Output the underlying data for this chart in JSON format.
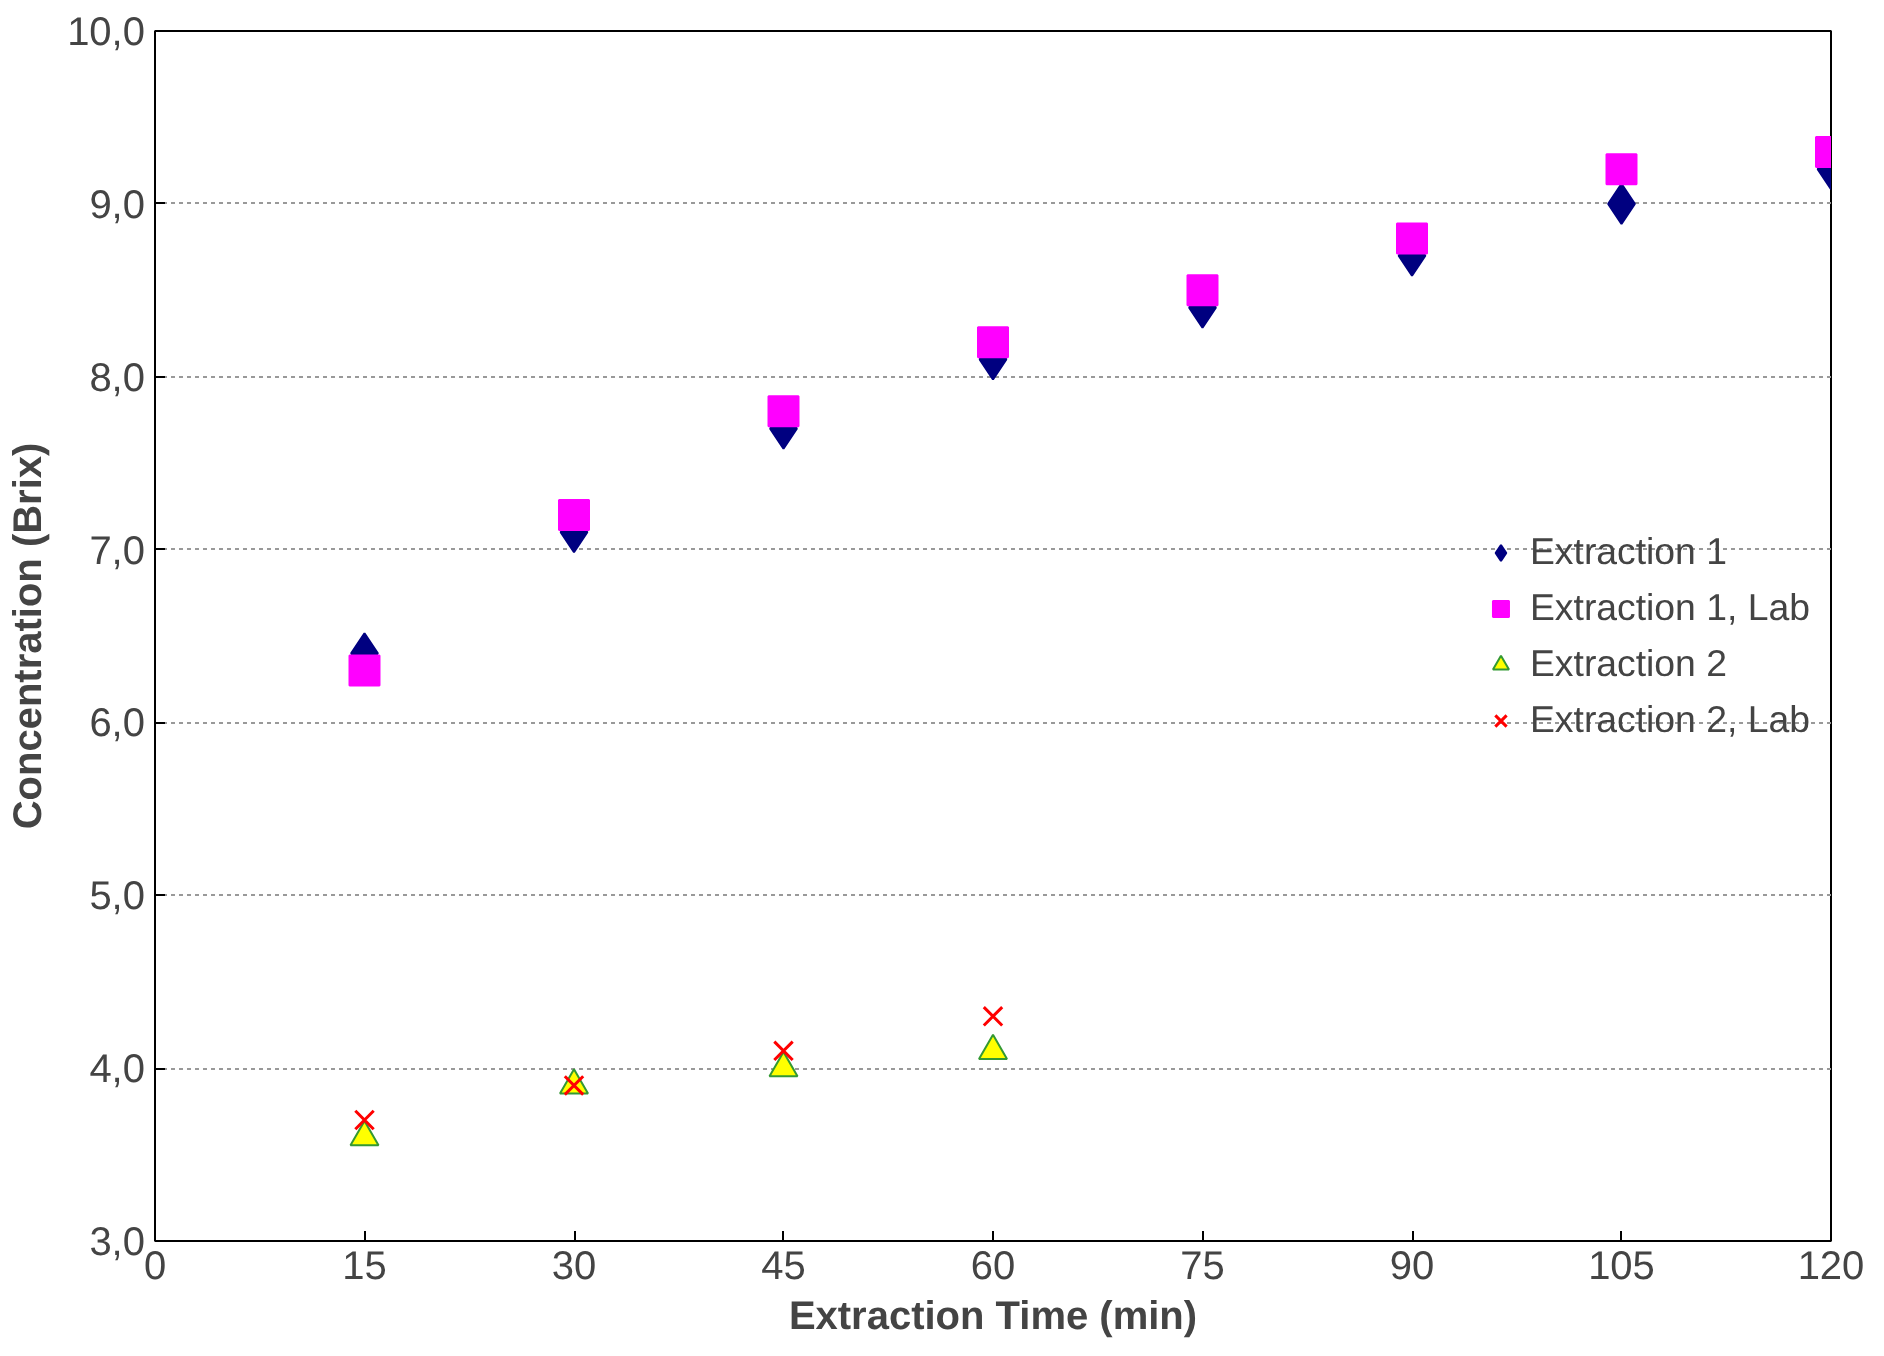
{
  "chart_data": {
    "type": "scatter",
    "xlabel": "Extraction Time (min)",
    "ylabel": "Concentration (Brix)",
    "x": [
      15,
      30,
      45,
      60,
      75,
      90,
      105,
      120
    ],
    "series": [
      {
        "name": "Extraction 1",
        "color": "#000080",
        "marker": "diamond",
        "values": [
          6.4,
          7.1,
          7.7,
          8.1,
          8.4,
          8.7,
          9.0,
          9.2
        ]
      },
      {
        "name": "Extraction 1, Lab",
        "color": "#ff00ff",
        "marker": "square",
        "values": [
          6.3,
          7.2,
          7.8,
          8.2,
          8.5,
          8.8,
          9.2,
          9.3
        ]
      },
      {
        "name": "Extraction 2",
        "color": "#ffff00",
        "marker": "triangle",
        "values": [
          3.6,
          3.9,
          4.0,
          4.1,
          null,
          null,
          null,
          null
        ]
      },
      {
        "name": "Extraction 2, Lab",
        "color": "#ff0000",
        "marker": "cross",
        "values": [
          3.7,
          3.9,
          4.1,
          4.3,
          null,
          null,
          null,
          null
        ]
      }
    ],
    "xlim": [
      0,
      120
    ],
    "xticks": [
      0,
      15,
      30,
      45,
      60,
      75,
      90,
      105,
      120
    ],
    "ylim": [
      3,
      10
    ],
    "yticks": [
      {
        "value": 3,
        "label": "3,0"
      },
      {
        "value": 4,
        "label": "4,0"
      },
      {
        "value": 5,
        "label": "5,0"
      },
      {
        "value": 6,
        "label": "6,0"
      },
      {
        "value": 7,
        "label": "7,0"
      },
      {
        "value": 8,
        "label": "8,0"
      },
      {
        "value": 9,
        "label": "9,0"
      },
      {
        "value": 10,
        "label": "10,0"
      }
    ],
    "grid": "y",
    "legend": "right"
  }
}
